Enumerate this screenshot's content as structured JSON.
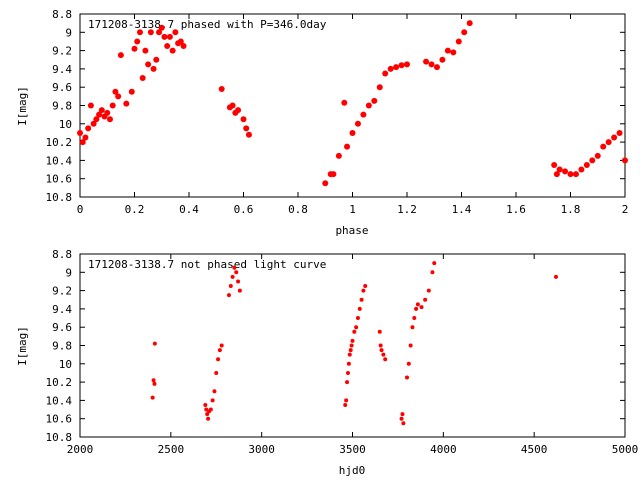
{
  "chart_data": [
    {
      "type": "scatter",
      "title": "171208-3138.7 phased with P=346.0day",
      "xlabel": "phase",
      "ylabel": "I[mag]",
      "xlim": [
        0,
        2
      ],
      "ylim": [
        10.8,
        8.8
      ],
      "y_inverted": true,
      "grid": false,
      "marker_color": "#ff0000",
      "x_ticks": [
        "0",
        "0.2",
        "0.4",
        "0.6",
        "0.8",
        "1",
        "1.2",
        "1.4",
        "1.6",
        "1.8",
        "2"
      ],
      "y_ticks": [
        "8.8",
        "9",
        "9.2",
        "9.4",
        "9.6",
        "9.8",
        "10",
        "10.2",
        "10.4",
        "10.6",
        "10.8"
      ],
      "series": [
        {
          "x": [
            0.0,
            0.01,
            0.02,
            0.03,
            0.04,
            0.05,
            0.06,
            0.07,
            0.08,
            0.09,
            0.1,
            0.11,
            0.12,
            0.13,
            0.14,
            0.15,
            0.17,
            0.19,
            0.2,
            0.21,
            0.22,
            0.23,
            0.24,
            0.25,
            0.26,
            0.27,
            0.28,
            0.29,
            0.3,
            0.31,
            0.32,
            0.33,
            0.34,
            0.35,
            0.36,
            0.37,
            0.38,
            0.52,
            0.55,
            0.56,
            0.57,
            0.58,
            0.6,
            0.61,
            0.62,
            0.9,
            0.92,
            0.93,
            0.95,
            0.97,
            0.98,
            1.0,
            1.02,
            1.04,
            1.06,
            1.08,
            1.1,
            1.12,
            1.14,
            1.16,
            1.18,
            1.2,
            1.27,
            1.29,
            1.31,
            1.33,
            1.35,
            1.37,
            1.39,
            1.41,
            1.43,
            1.74,
            1.75,
            1.76,
            1.78,
            1.8,
            1.82,
            1.84,
            1.86,
            1.88,
            1.9,
            1.92,
            1.94,
            1.96,
            1.98,
            2.0
          ],
          "y": [
            10.1,
            10.2,
            10.15,
            10.05,
            9.8,
            10.0,
            9.95,
            9.9,
            9.85,
            9.92,
            9.88,
            9.95,
            9.8,
            9.65,
            9.7,
            9.25,
            9.78,
            9.65,
            9.18,
            9.1,
            9.0,
            9.5,
            9.2,
            9.35,
            9.0,
            9.4,
            9.3,
            9.0,
            8.95,
            9.05,
            9.15,
            9.05,
            9.2,
            9.0,
            9.12,
            9.1,
            9.15,
            9.62,
            9.82,
            9.8,
            9.88,
            9.85,
            9.95,
            10.05,
            10.12,
            10.65,
            10.55,
            10.55,
            10.35,
            9.77,
            10.25,
            10.1,
            10.0,
            9.9,
            9.8,
            9.75,
            9.6,
            9.45,
            9.4,
            9.38,
            9.36,
            9.35,
            9.32,
            9.35,
            9.38,
            9.3,
            9.2,
            9.22,
            9.1,
            9.0,
            8.9,
            10.45,
            10.55,
            10.5,
            10.52,
            10.55,
            10.55,
            10.5,
            10.45,
            10.4,
            10.35,
            10.25,
            10.2,
            10.15,
            10.1,
            10.4
          ]
        }
      ]
    },
    {
      "type": "scatter",
      "title": "171208-3138.7 not phased light curve",
      "xlabel": "hjd0",
      "ylabel": "I[mag]",
      "xlim": [
        2000,
        5000
      ],
      "ylim": [
        10.8,
        8.8
      ],
      "y_inverted": true,
      "grid": false,
      "marker_color": "#ff0000",
      "x_ticks": [
        "2000",
        "2500",
        "3000",
        "3500",
        "4000",
        "4500",
        "5000"
      ],
      "y_ticks": [
        "8.8",
        "9",
        "9.2",
        "9.4",
        "9.6",
        "9.8",
        "10",
        "10.2",
        "10.4",
        "10.6",
        "10.8"
      ],
      "series": [
        {
          "x": [
            2400,
            2405,
            2410,
            2412,
            2690,
            2695,
            2700,
            2705,
            2710,
            2720,
            2730,
            2740,
            2750,
            2760,
            2770,
            2780,
            2820,
            2830,
            2840,
            2850,
            2860,
            2870,
            2880,
            3460,
            3465,
            3470,
            3475,
            3480,
            3485,
            3490,
            3495,
            3500,
            3510,
            3520,
            3530,
            3540,
            3550,
            3560,
            3570,
            3650,
            3655,
            3660,
            3670,
            3680,
            3770,
            3775,
            3780,
            3800,
            3810,
            3820,
            3830,
            3840,
            3850,
            3860,
            3880,
            3900,
            3920,
            3940,
            3950,
            4620
          ],
          "y": [
            10.37,
            10.18,
            10.22,
            9.78,
            10.45,
            10.5,
            10.55,
            10.6,
            10.52,
            10.5,
            10.4,
            10.3,
            10.1,
            9.95,
            9.85,
            9.8,
            9.25,
            9.15,
            9.05,
            8.95,
            9.0,
            9.1,
            9.2,
            10.45,
            10.4,
            10.2,
            10.1,
            10.0,
            9.9,
            9.85,
            9.8,
            9.75,
            9.65,
            9.6,
            9.5,
            9.4,
            9.3,
            9.2,
            9.15,
            9.65,
            9.8,
            9.85,
            9.9,
            9.95,
            10.6,
            10.55,
            10.65,
            10.15,
            10.0,
            9.8,
            9.6,
            9.5,
            9.4,
            9.35,
            9.38,
            9.3,
            9.2,
            9.0,
            8.9,
            9.05
          ]
        }
      ]
    }
  ]
}
